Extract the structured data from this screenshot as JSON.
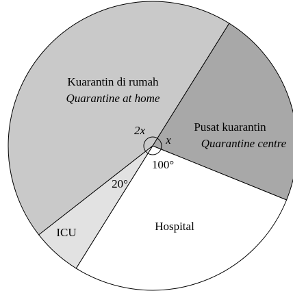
{
  "sectors": [
    {
      "label": "Kuarantin di rumah",
      "label_en": "Quarantine at home",
      "angle_label": "2x"
    },
    {
      "label": "Pusat kuarantin",
      "label_en": "Quarantine centre",
      "angle_label": "x"
    },
    {
      "label": "Hospital",
      "angle_label": "100°"
    },
    {
      "label": "ICU",
      "angle_label": "20°"
    }
  ]
}
